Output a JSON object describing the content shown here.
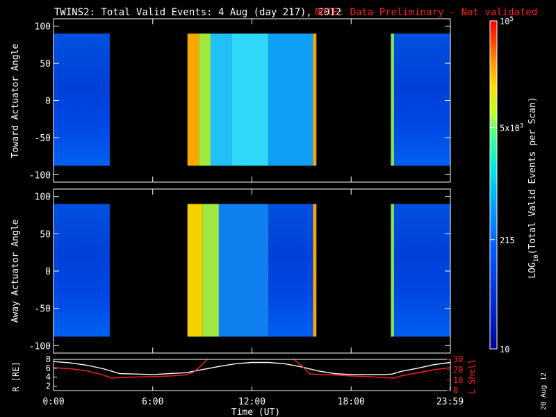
{
  "title": {
    "main": "TWINS2: Total Valid Events:  4 Aug (day 217), 2012",
    "note": "NOTE: Data Preliminary - Not validated"
  },
  "colorbar": {
    "label_prefix": "LOG",
    "label_sub": "10",
    "label_suffix": "(Total Valid Events per Scan)",
    "ticks": [
      {
        "key": "top",
        "base": "10",
        "exp": "5"
      },
      {
        "key": "mid",
        "base": "5x10",
        "exp": "3"
      },
      {
        "key": "low",
        "base": "215",
        "exp": ""
      },
      {
        "key": "bottom",
        "base": "10",
        "exp": ""
      }
    ],
    "colors": [
      "#0010a8",
      "#0030d0",
      "#0060ff",
      "#00a0ff",
      "#00e0f0",
      "#40ffa0",
      "#c0ff20",
      "#ffe000",
      "#ff9000",
      "#ff3000",
      "#ff0000"
    ]
  },
  "date_stamp": "20 Aug 12",
  "chart_data": [
    {
      "type": "heatmap",
      "name": "toward",
      "ylabel": "Toward Actuator Angle",
      "ylim": [
        -110,
        110
      ],
      "yticks": [
        100,
        50,
        0,
        -50,
        -100
      ],
      "xlim_hours": [
        0,
        24
      ],
      "data_angle_range": [
        -88,
        90
      ],
      "segments": [
        {
          "start": 0.0,
          "end": 3.4,
          "level": "blue"
        },
        {
          "start": 8.1,
          "end": 8.8,
          "level": "orange"
        },
        {
          "start": 8.8,
          "end": 9.5,
          "level": "yellow-green"
        },
        {
          "start": 9.5,
          "end": 10.8,
          "level": "cyan"
        },
        {
          "start": 10.8,
          "end": 13.0,
          "level": "light-cyan"
        },
        {
          "start": 13.0,
          "end": 15.7,
          "level": "blue-cyan"
        },
        {
          "start": 15.7,
          "end": 15.9,
          "level": "orange"
        },
        {
          "start": 20.4,
          "end": 20.6,
          "level": "green"
        },
        {
          "start": 20.6,
          "end": 24.0,
          "level": "blue"
        }
      ]
    },
    {
      "type": "heatmap",
      "name": "away",
      "ylabel": "Away Actuator Angle",
      "ylim": [
        -110,
        110
      ],
      "yticks": [
        100,
        50,
        0,
        -50,
        -100
      ],
      "xlim_hours": [
        0,
        24
      ],
      "data_angle_range": [
        -88,
        90
      ],
      "segments": [
        {
          "start": 0.0,
          "end": 3.4,
          "level": "blue"
        },
        {
          "start": 8.1,
          "end": 9.0,
          "level": "yellow"
        },
        {
          "start": 9.0,
          "end": 10.0,
          "level": "yellow-green"
        },
        {
          "start": 10.0,
          "end": 13.0,
          "level": "cyan-blue"
        },
        {
          "start": 13.0,
          "end": 15.7,
          "level": "blue"
        },
        {
          "start": 15.7,
          "end": 15.9,
          "level": "orange"
        },
        {
          "start": 20.4,
          "end": 20.6,
          "level": "green"
        },
        {
          "start": 20.6,
          "end": 24.0,
          "level": "blue"
        }
      ]
    },
    {
      "type": "line",
      "name": "orbit",
      "ylabel": "R [RE]",
      "ylabel_sub": "E",
      "y2label": "L Shell",
      "ylim": [
        1,
        8
      ],
      "yticks": [
        8,
        6,
        4,
        2
      ],
      "y2lim": [
        0,
        30
      ],
      "y2ticks": [
        30,
        20,
        10,
        0
      ],
      "xlabel": "Time (UT)",
      "xticks": [
        "0:00",
        "6:00",
        "12:00",
        "18:00",
        "23:59"
      ],
      "xtick_hours": [
        0,
        6,
        12,
        18,
        23.98
      ],
      "series": [
        {
          "axis": "R",
          "color": "#ffffff",
          "x": [
            0,
            1,
            2,
            3,
            4,
            5,
            6,
            7,
            8,
            9,
            10,
            11,
            12,
            13,
            14,
            15,
            16,
            17,
            18,
            19,
            20,
            20.5,
            21,
            22,
            23,
            24
          ],
          "y": [
            7.5,
            7.2,
            6.7,
            5.9,
            4.8,
            4.7,
            4.6,
            4.8,
            5.0,
            5.7,
            6.4,
            7.0,
            7.3,
            7.3,
            7.0,
            6.3,
            5.4,
            4.8,
            4.6,
            4.6,
            4.6,
            4.7,
            5.3,
            6.0,
            6.8,
            7.3
          ]
        },
        {
          "axis": "L",
          "color": "#ff2020",
          "x": [
            0,
            1,
            2,
            3,
            3.5,
            4,
            5,
            6,
            7,
            8,
            8.5,
            9,
            9.3,
            null,
            14.5,
            15,
            15.5,
            16,
            17,
            18,
            19,
            20,
            20.6,
            21,
            22,
            23,
            24
          ],
          "y": [
            22,
            21,
            19,
            15,
            12,
            12.5,
            13,
            13.5,
            14,
            15,
            18,
            25,
            30,
            null,
            30,
            24,
            16,
            15.5,
            15,
            14,
            13.5,
            12.5,
            12,
            14,
            17,
            20,
            22
          ]
        }
      ]
    }
  ]
}
